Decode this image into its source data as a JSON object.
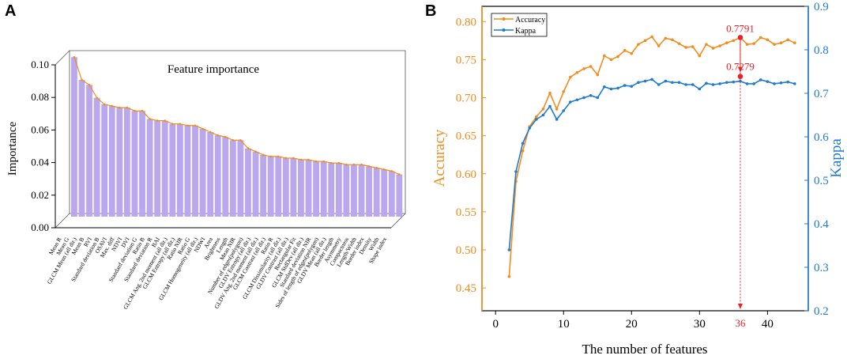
{
  "panel_a": {
    "letter": "A"
  },
  "panel_b": {
    "letter": "B"
  },
  "chart_data": [
    {
      "type": "bar",
      "title": "Feature importance",
      "ylabel": "Importance",
      "xlabel": "",
      "ylim": [
        0.0,
        0.1
      ],
      "yticks": [
        "0.00",
        "0.02",
        "0.04",
        "0.06",
        "0.08",
        "0.10"
      ],
      "bar_color": "#b9a8ee",
      "line_color": "#f28c1c",
      "categories": [
        "Mean R",
        "Mean G",
        "GLCM Mean (all dir.)",
        "Mean B",
        "RVI",
        "Standard deviation B",
        "OSAVI",
        "Max. diff",
        "NDVI",
        "DVI",
        "Standard deviation G",
        "Ratio B",
        "Standard deviation R",
        "BAI",
        "GLCM Ang. 2nd moment (all dir.)",
        "GLCM Entropy (all dir.)",
        "Ratio NIR",
        "Ratio G",
        "GLCM Homogeneity (all dir.)",
        "NDWI",
        "Area",
        "Brightness",
        "Length",
        "Mean NIR",
        "Number of edges(polygon)",
        "GLDV Entropy (all dir.)",
        "GLDV Ang. 2nd moment (all dir.)",
        "GLCM Contrast (all dir.)",
        "Ratio R",
        "GLCM Dissimilarity (all dir.)",
        "GLDV Contrast (all dir.)",
        "Rectangular Fit",
        "GLCM StdDev (all dir.)",
        "Standard deviation NIR",
        "Sides of length of edges(polygon)",
        "GLDV Mean (all dir.)",
        "Border length",
        "Asymmetry",
        "Compactness",
        "Length/Width",
        "Border index",
        "Density",
        "Width",
        "Shape index"
      ],
      "values": [
        0.096,
        0.082,
        0.079,
        0.071,
        0.067,
        0.066,
        0.065,
        0.065,
        0.063,
        0.063,
        0.058,
        0.057,
        0.057,
        0.055,
        0.055,
        0.054,
        0.054,
        0.052,
        0.05,
        0.048,
        0.047,
        0.045,
        0.045,
        0.04,
        0.038,
        0.036,
        0.035,
        0.035,
        0.034,
        0.034,
        0.033,
        0.033,
        0.032,
        0.032,
        0.031,
        0.031,
        0.03,
        0.03,
        0.03,
        0.029,
        0.028,
        0.027,
        0.026,
        0.024
      ]
    },
    {
      "type": "line",
      "xlabel": "The number of features",
      "ylabel_left": "Accuracy",
      "ylabel_right": "Kappa",
      "xlim": [
        -2,
        46
      ],
      "ylim_left": [
        0.42,
        0.82
      ],
      "ylim_right": [
        0.2,
        0.9
      ],
      "xticks": [
        "0",
        "10",
        "20",
        "30",
        "40"
      ],
      "yticks_left": [
        "0.45",
        "0.50",
        "0.55",
        "0.60",
        "0.65",
        "0.70",
        "0.75",
        "0.80"
      ],
      "yticks_right": [
        "0.2",
        "0.3",
        "0.4",
        "0.5",
        "0.6",
        "0.7",
        "0.8",
        "0.9"
      ],
      "x": [
        2,
        3,
        4,
        5,
        6,
        7,
        8,
        9,
        10,
        11,
        12,
        13,
        14,
        15,
        16,
        17,
        18,
        19,
        20,
        21,
        22,
        23,
        24,
        25,
        26,
        27,
        28,
        29,
        30,
        31,
        32,
        33,
        34,
        35,
        36,
        37,
        38,
        39,
        40,
        41,
        42,
        43,
        44
      ],
      "series": [
        {
          "name": "Accuracy",
          "axis": "left",
          "color": "#f28c1c",
          "values": [
            0.465,
            0.59,
            0.63,
            0.662,
            0.675,
            0.685,
            0.706,
            0.685,
            0.708,
            0.727,
            0.733,
            0.738,
            0.741,
            0.73,
            0.755,
            0.75,
            0.754,
            0.762,
            0.758,
            0.77,
            0.775,
            0.78,
            0.768,
            0.778,
            0.776,
            0.771,
            0.766,
            0.767,
            0.755,
            0.77,
            0.765,
            0.768,
            0.772,
            0.775,
            0.7791,
            0.77,
            0.771,
            0.779,
            0.776,
            0.77,
            0.772,
            0.776,
            0.772
          ]
        },
        {
          "name": "Kappa",
          "axis": "right",
          "color": "#1f7ad1",
          "values": [
            0.34,
            0.52,
            0.585,
            0.62,
            0.64,
            0.65,
            0.67,
            0.64,
            0.66,
            0.68,
            0.685,
            0.69,
            0.695,
            0.69,
            0.715,
            0.71,
            0.712,
            0.718,
            0.716,
            0.725,
            0.728,
            0.732,
            0.72,
            0.728,
            0.725,
            0.725,
            0.72,
            0.72,
            0.71,
            0.723,
            0.72,
            0.722,
            0.725,
            0.726,
            0.7279,
            0.722,
            0.722,
            0.731,
            0.727,
            0.722,
            0.724,
            0.726,
            0.722
          ]
        }
      ],
      "annotations": [
        {
          "text": "0.7791",
          "x": 36,
          "y": 0.7791,
          "axis": "left"
        },
        {
          "text": "0.7279",
          "x": 36,
          "y": 0.7279,
          "axis": "left"
        },
        {
          "text": "36",
          "x": 36
        }
      ],
      "annotation_color": "#e8202a",
      "legend": {
        "position": "top-left",
        "items": [
          "Accuracy",
          "Kappa"
        ]
      }
    }
  ]
}
